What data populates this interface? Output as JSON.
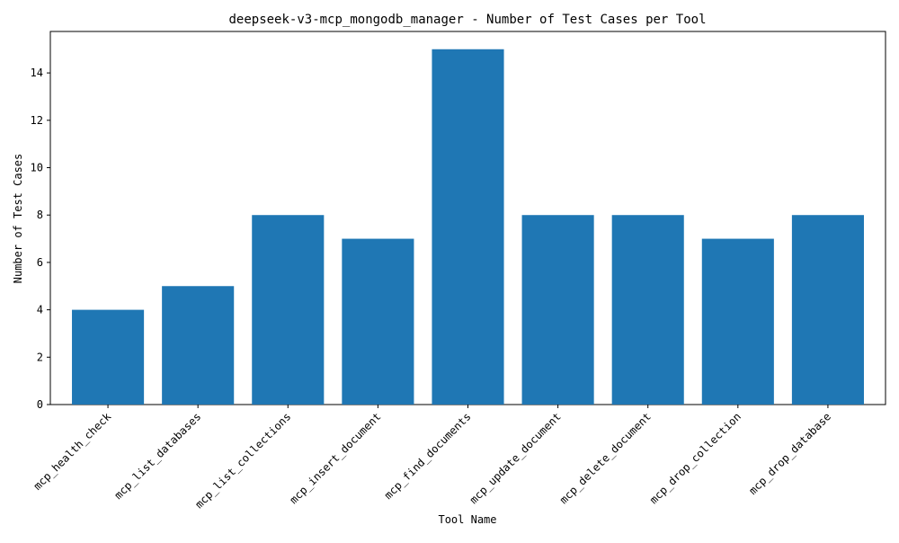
{
  "chart_data": {
    "type": "bar",
    "title": "deepseek-v3-mcp_mongodb_manager - Number of Test Cases per Tool",
    "xlabel": "Tool Name",
    "ylabel": "Number of Test Cases",
    "categories": [
      "mcp_health_check",
      "mcp_list_databases",
      "mcp_list_collections",
      "mcp_insert_document",
      "mcp_find_documents",
      "mcp_update_document",
      "mcp_delete_document",
      "mcp_drop_collection",
      "mcp_drop_database"
    ],
    "values": [
      4,
      5,
      8,
      7,
      15,
      8,
      8,
      7,
      8
    ],
    "ylim": [
      0,
      15.75
    ],
    "yticks": [
      0,
      2,
      4,
      6,
      8,
      10,
      12,
      14
    ],
    "grid": false,
    "legend": "none",
    "bar_color": "#1f77b4"
  }
}
